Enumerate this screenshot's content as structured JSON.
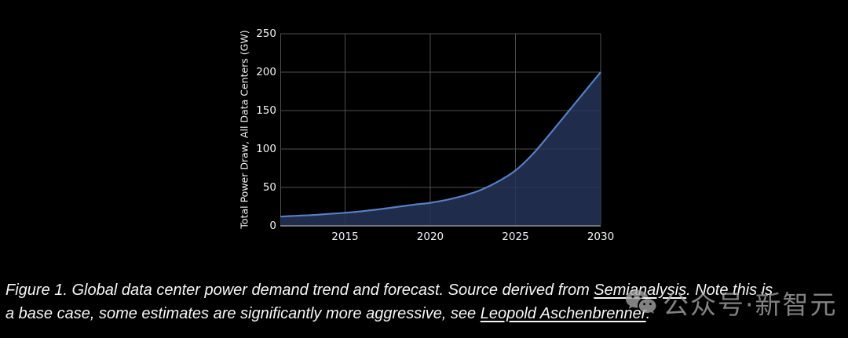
{
  "page": {
    "background": "#000000"
  },
  "chart_data": {
    "type": "area",
    "title": "",
    "xlabel": "",
    "ylabel": "Total Power Draw, All Data Centers (GW)",
    "x": [
      2011.2,
      2012,
      2013,
      2014,
      2015,
      2016,
      2017,
      2018,
      2019,
      2020,
      2021,
      2022,
      2023,
      2024,
      2025,
      2026,
      2027,
      2028,
      2029,
      2030
    ],
    "values": [
      12,
      13,
      14,
      15.5,
      17,
      19,
      21.5,
      24.5,
      27.5,
      30,
      34,
      39.5,
      47,
      58,
      72,
      93,
      119,
      146,
      173,
      200
    ],
    "xlim": [
      2011.2,
      2030
    ],
    "ylim": [
      0,
      250
    ],
    "xticks": [
      2015,
      2020,
      2025,
      2030
    ],
    "yticks": [
      0,
      50,
      100,
      150,
      200,
      250
    ],
    "grid": true,
    "legend": "none",
    "colors": {
      "line": "#567fc0",
      "fill": "rgba(36,52,88,0.85)",
      "grid": "#4f4f52",
      "axis": "#8f8f8f",
      "tick_text": "#f2f2f2"
    }
  },
  "caption": {
    "line1": {
      "pre": "Figure 1. Global data center power demand trend and forecast. Source derived from ",
      "link": "Semianalysis",
      "post": ". Note this is"
    },
    "line2": {
      "pre": "a base case, some estimates are significantly more aggressive, see ",
      "link": "Leopold Aschenbrenner",
      "post": "."
    }
  },
  "watermark": {
    "icon": "wechat-icon",
    "text": "公众号·新智元",
    "color": "#a6a6a6"
  }
}
